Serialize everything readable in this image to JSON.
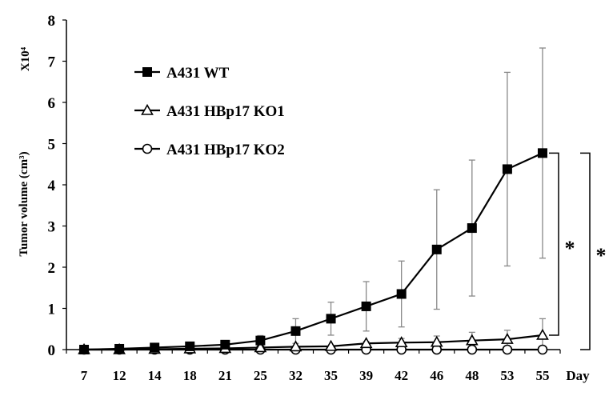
{
  "chart_data": {
    "type": "line",
    "ylabel": "Tumor volume (cm³)",
    "y_multiplier": "X10⁴",
    "xlabel": "Day",
    "categories": [
      "7",
      "12",
      "14",
      "18",
      "21",
      "25",
      "32",
      "35",
      "39",
      "42",
      "46",
      "48",
      "53",
      "55"
    ],
    "ylim": [
      0,
      8
    ],
    "yticks": [
      "0",
      "1",
      "2",
      "3",
      "4",
      "5",
      "6",
      "7",
      "8"
    ],
    "grid": false,
    "legend_position": "top-left",
    "series": [
      {
        "name": "A431 WT",
        "marker": "filled-square",
        "values": [
          0,
          0.02,
          0.05,
          0.08,
          0.12,
          0.22,
          0.45,
          0.75,
          1.05,
          1.35,
          2.43,
          2.95,
          4.38,
          4.77
        ],
        "error": [
          0,
          0,
          0,
          0,
          0,
          0.12,
          0.3,
          0.4,
          0.6,
          0.8,
          1.45,
          1.65,
          2.35,
          2.55
        ]
      },
      {
        "name": "A431 HBp17 KO1",
        "marker": "open-triangle",
        "values": [
          0,
          0,
          0.01,
          0.02,
          0.03,
          0.05,
          0.07,
          0.08,
          0.15,
          0.17,
          0.18,
          0.22,
          0.25,
          0.35
        ],
        "error": [
          0,
          0,
          0,
          0,
          0,
          0,
          0,
          0,
          0.05,
          0.1,
          0.15,
          0.2,
          0.22,
          0.4
        ]
      },
      {
        "name": "A431 HBp17 KO2",
        "marker": "open-circle",
        "values": [
          0,
          0,
          0,
          0,
          0,
          0,
          0,
          0,
          0,
          0,
          0,
          0,
          0,
          0
        ],
        "error": [
          0,
          0,
          0,
          0,
          0,
          0,
          0,
          0,
          0,
          0,
          0,
          0,
          0,
          0
        ]
      }
    ],
    "annotations": [
      "*",
      "*"
    ],
    "colors": {
      "line": "#000000",
      "error_bar": "#888888",
      "background": "#ffffff"
    }
  }
}
